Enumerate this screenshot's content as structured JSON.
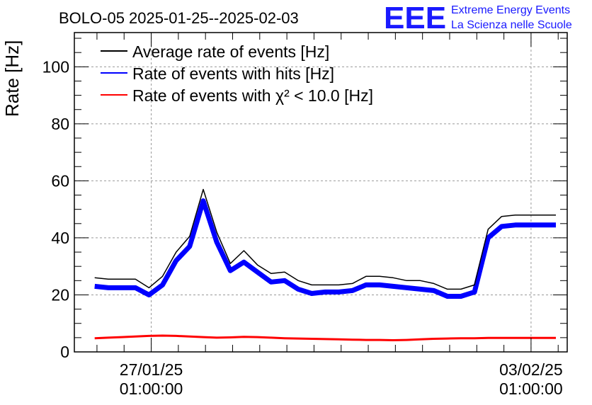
{
  "header": {
    "title": "BOLO-05 2025-01-25--2025-02-03",
    "logo_text": "EEE",
    "logo_line1": "Extreme Energy Events",
    "logo_line2": "La Scienza nelle Scuole",
    "logo_color": "#1a1aff"
  },
  "chart_data": {
    "type": "line",
    "title": "BOLO-05 2025-01-25--2025-02-03",
    "ylabel": "Rate [Hz]",
    "xlabel": "",
    "xlim": [
      "2025-01-25 15:00",
      "2025-02-03 17:00"
    ],
    "ylim": [
      0,
      112
    ],
    "yticks": [
      0,
      20,
      40,
      60,
      80,
      100
    ],
    "xticks": [
      {
        "date": "2025-01-27 01:00",
        "label_line1": "27/01/25",
        "label_line2": "01:00:00"
      },
      {
        "date": "2025-02-03 01:00",
        "label_line1": "03/02/25",
        "label_line2": "01:00:00"
      }
    ],
    "grid": true,
    "legend_position": "top-left",
    "x": [
      "2025-01-26 00:00",
      "2025-01-26 06:00",
      "2025-01-26 12:00",
      "2025-01-26 18:00",
      "2025-01-27 00:00",
      "2025-01-27 06:00",
      "2025-01-27 12:00",
      "2025-01-27 18:00",
      "2025-01-28 00:00",
      "2025-01-28 06:00",
      "2025-01-28 12:00",
      "2025-01-28 18:00",
      "2025-01-29 00:00",
      "2025-01-29 06:00",
      "2025-01-29 12:00",
      "2025-01-29 18:00",
      "2025-01-30 00:00",
      "2025-01-30 06:00",
      "2025-01-30 12:00",
      "2025-01-30 18:00",
      "2025-01-31 00:00",
      "2025-01-31 06:00",
      "2025-01-31 12:00",
      "2025-01-31 18:00",
      "2025-02-01 00:00",
      "2025-02-01 06:00",
      "2025-02-01 12:00",
      "2025-02-01 18:00",
      "2025-02-02 00:00",
      "2025-02-02 06:00",
      "2025-02-02 12:00",
      "2025-02-02 18:00",
      "2025-02-03 00:00",
      "2025-02-03 06:00",
      "2025-02-03 08:00",
      "2025-02-03 12:00"
    ],
    "series": [
      {
        "name": "Average rate of events [Hz]",
        "color": "#000000",
        "values": [
          26,
          25.5,
          25.5,
          25.5,
          22.5,
          26.5,
          35,
          40.5,
          57,
          42,
          31,
          35.5,
          30.5,
          27.5,
          28,
          25,
          23.5,
          23.5,
          23.5,
          24,
          26.5,
          26.5,
          26,
          25,
          25,
          24,
          22,
          22,
          23.5,
          43,
          47.5,
          48,
          48,
          48,
          48,
          48
        ]
      },
      {
        "name": "Rate of events with hits [Hz]",
        "color": "#0000ff",
        "values": [
          23,
          22.5,
          22.5,
          22.5,
          20,
          23.5,
          32,
          37,
          53,
          38.5,
          28.5,
          31.5,
          28,
          24.5,
          25,
          22,
          20.5,
          21,
          21,
          21.5,
          23.5,
          23.5,
          23,
          22.5,
          22,
          21.5,
          19.5,
          19.5,
          21,
          40,
          44,
          44.5,
          44.5,
          44.5,
          44.5,
          44.5
        ]
      },
      {
        "name": "Rate of events with χ² < 10.0 [Hz]",
        "color": "#ff0000",
        "values": [
          4.8,
          5.0,
          5.2,
          5.4,
          5.6,
          5.7,
          5.6,
          5.4,
          5.2,
          5.0,
          5.1,
          5.3,
          5.2,
          5.0,
          4.8,
          4.7,
          4.6,
          4.5,
          4.4,
          4.3,
          4.2,
          4.2,
          4.1,
          4.2,
          4.4,
          4.6,
          4.7,
          4.8,
          4.8,
          4.9,
          4.9,
          4.9,
          4.9,
          4.9,
          4.9,
          4.9
        ]
      }
    ]
  }
}
